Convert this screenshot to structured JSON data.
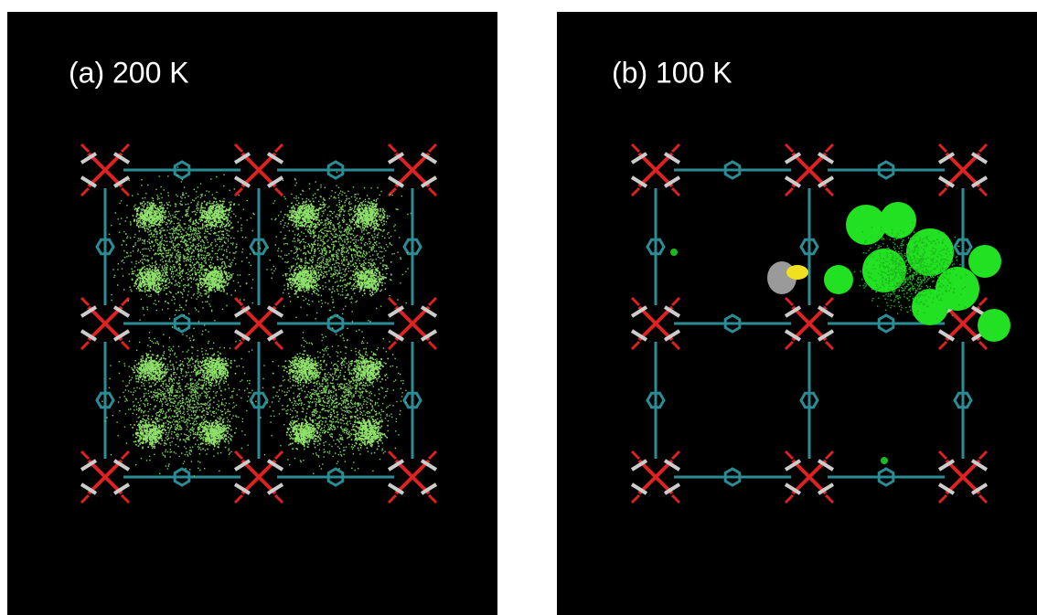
{
  "panels": [
    {
      "label": "(a) 200 K"
    },
    {
      "label": "(b) 100 K"
    }
  ]
}
